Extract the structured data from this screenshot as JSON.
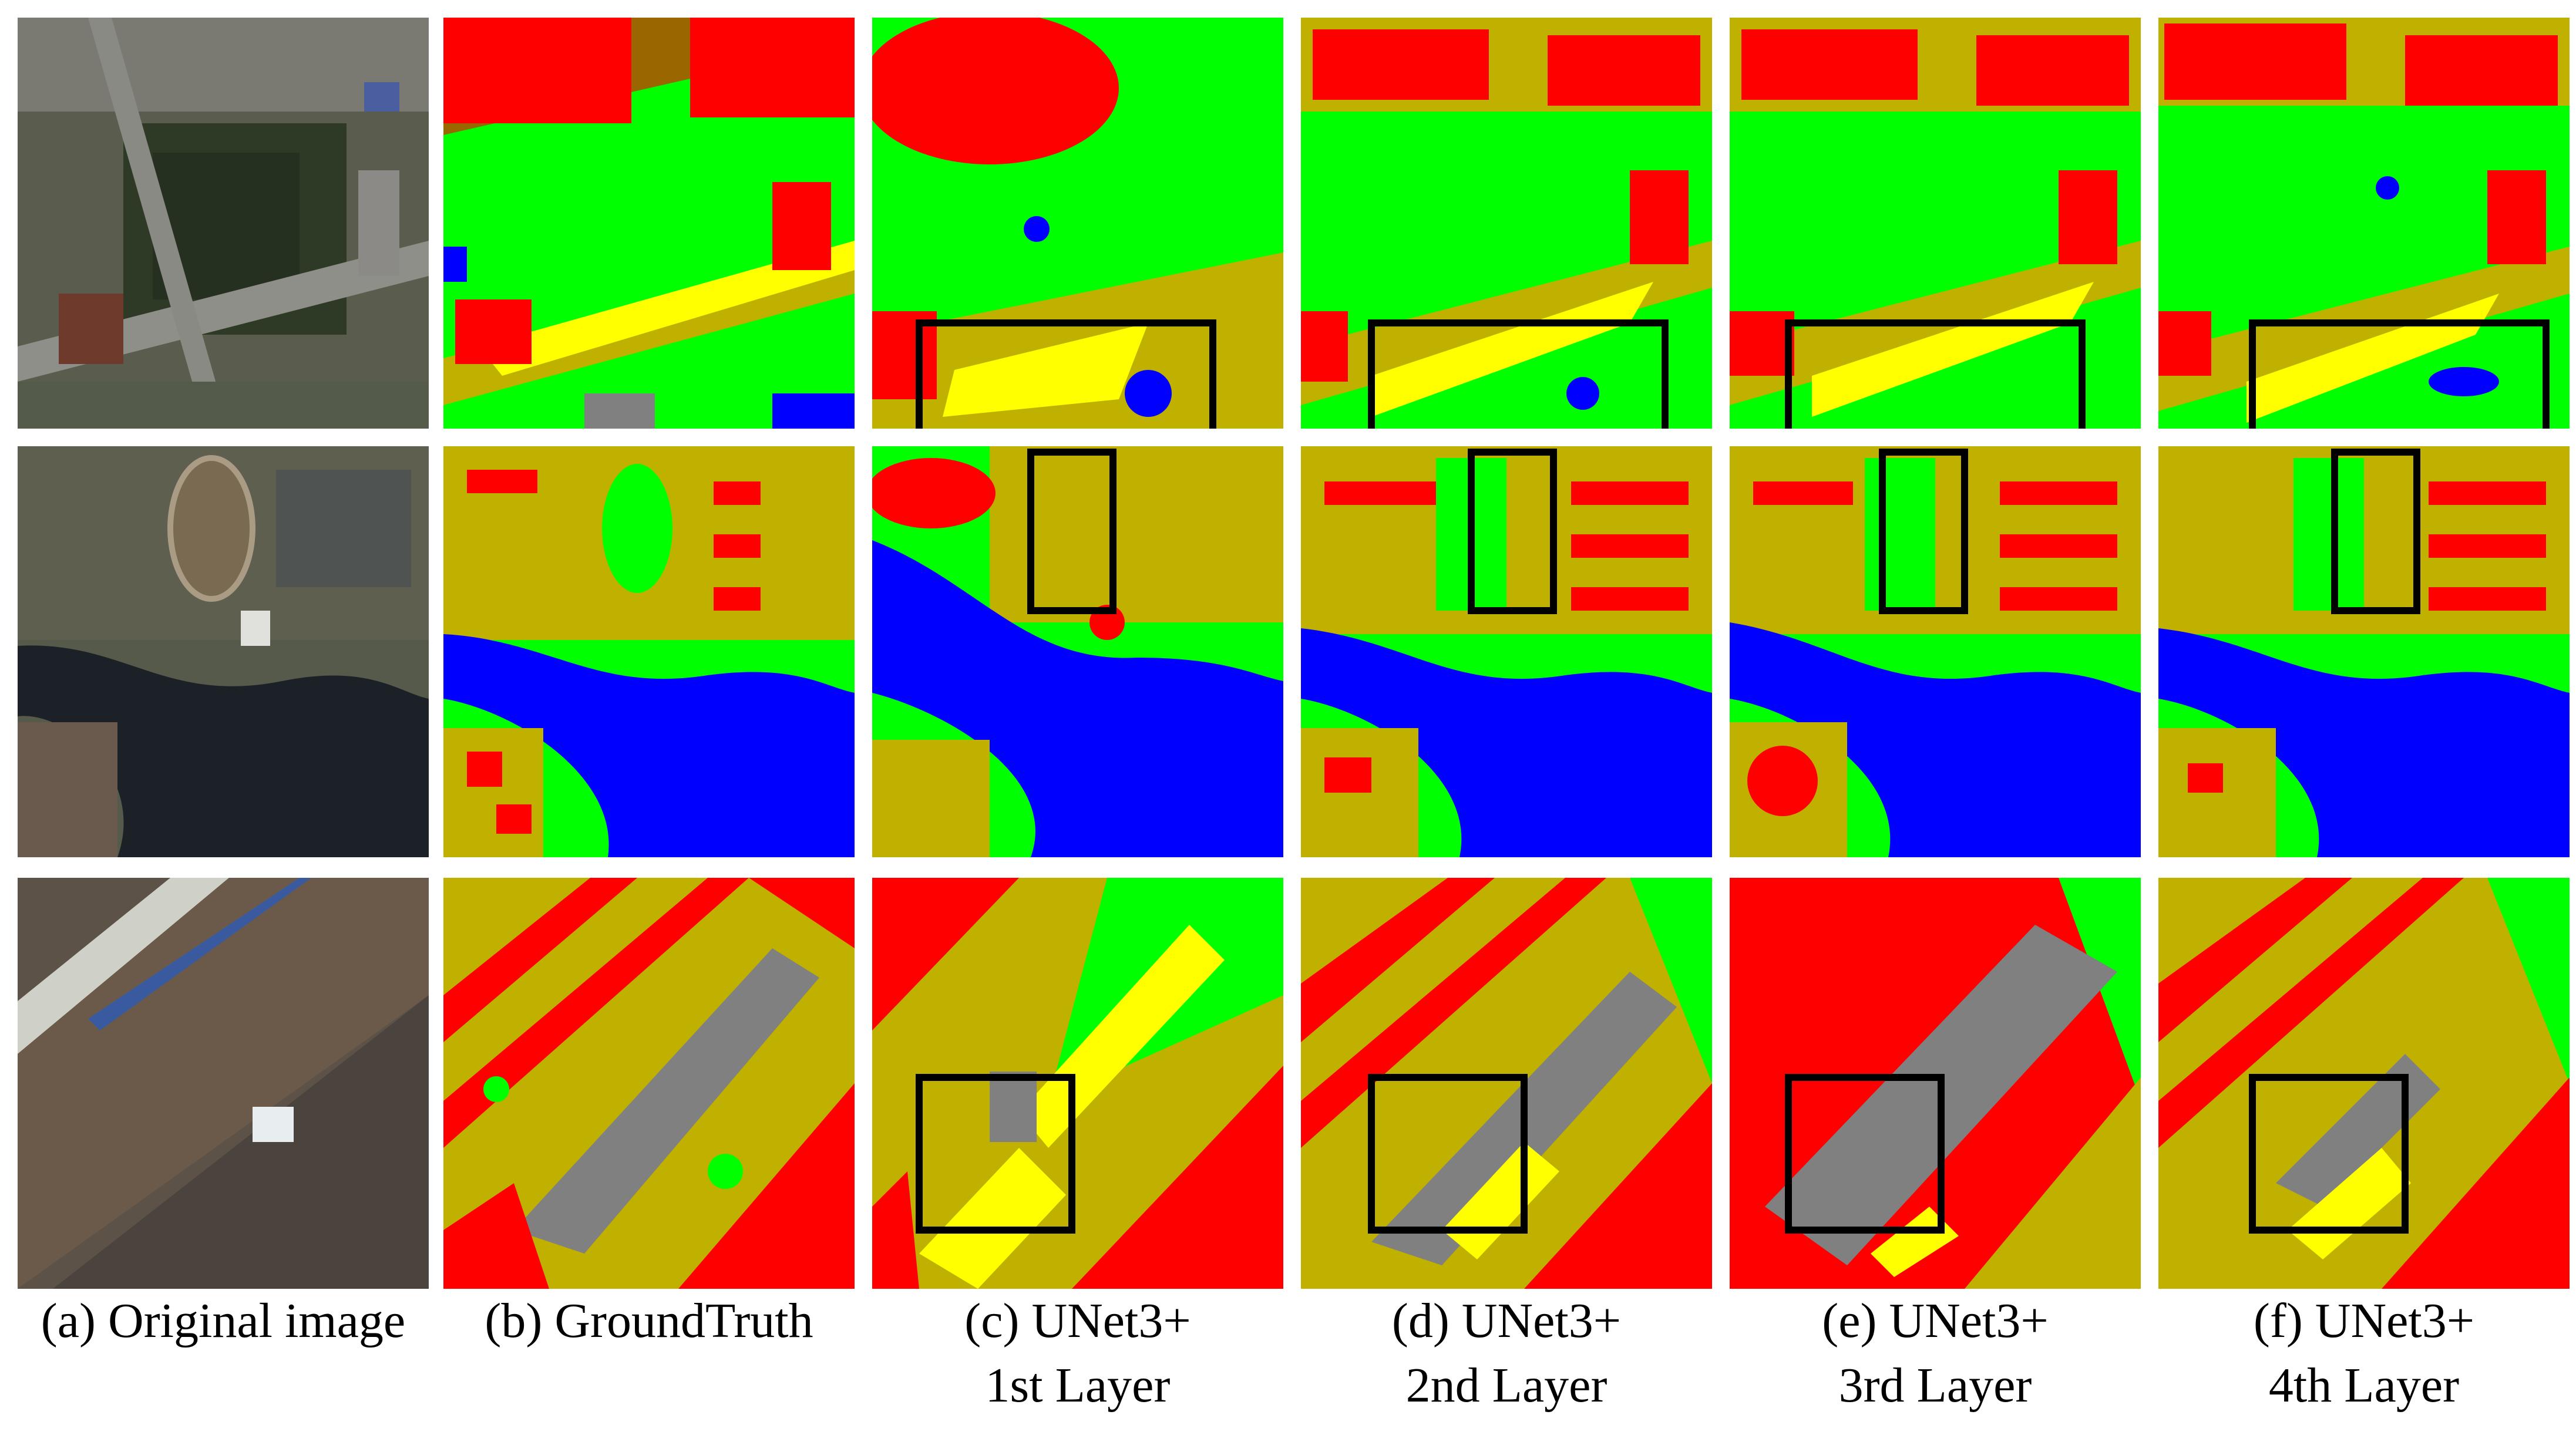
{
  "figure": {
    "colors": {
      "building": "#ff0000",
      "vegetation": "#00ff00",
      "water": "#0000ff",
      "road": "#ffff00",
      "farmland": "#c0b000",
      "bare": "#808080",
      "box": "#000000"
    },
    "captions": [
      {
        "line1": "(a) Original image",
        "line2": ""
      },
      {
        "line1": "(b) GroundTruth",
        "line2": ""
      },
      {
        "line1": "(c) UNet3+",
        "line2": "1st Layer"
      },
      {
        "line1": "(d) UNet3+",
        "line2": "2nd Layer"
      },
      {
        "line1": "(e) UNet3+",
        "line2": "3rd Layer"
      },
      {
        "line1": "(f) UNet3+",
        "line2": "4th Layer"
      }
    ]
  }
}
